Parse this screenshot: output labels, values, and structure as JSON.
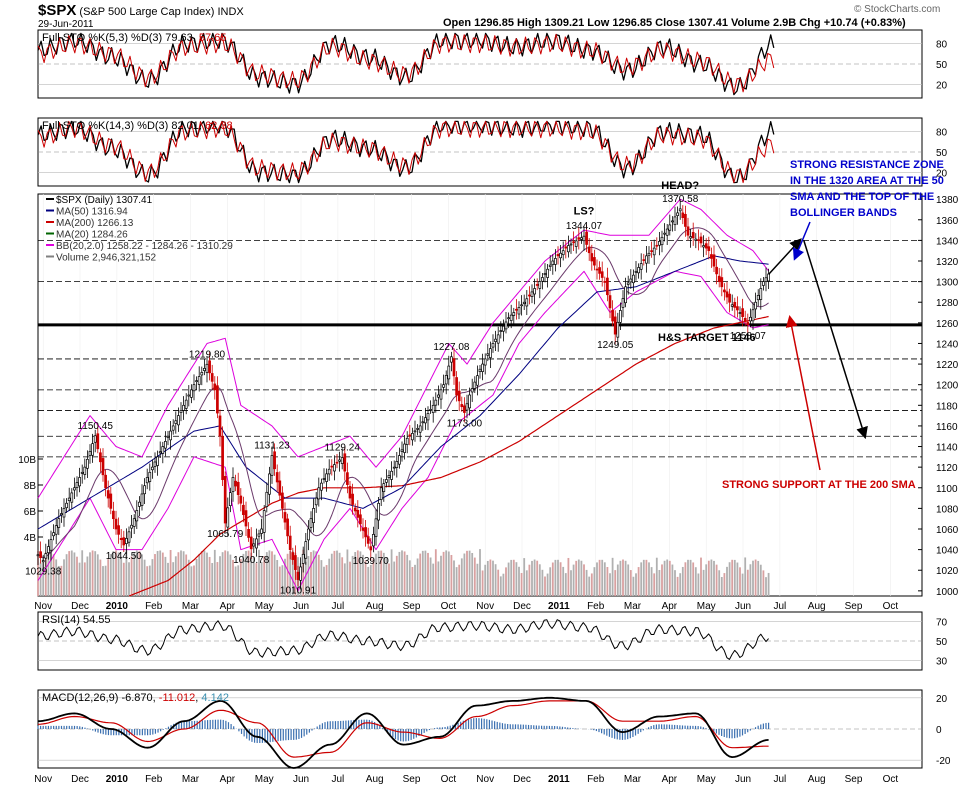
{
  "header": {
    "symbol": "$SPX",
    "name": "(S&P 500 Large Cap Index)",
    "exchange": "INDX",
    "date": "29-Jun-2011",
    "quote": "Open 1296.85  High 1309.21  Low 1296.85  Close 1307.41  Volume 2.9B  Chg +10.74 (+0.83%)",
    "watermark": "© StockCharts.com"
  },
  "colors": {
    "up": "#000000",
    "down": "#cc0000",
    "ma50": "#000080",
    "ma200": "#cc0000",
    "ma20": "#006400",
    "bb": "#dd00dd",
    "volume": "#b0b0b0",
    "annotation_blue": "#0000cc",
    "annotation_red": "#cc0000"
  },
  "chart_data": [
    {
      "type": "line",
      "title": "Full STO %K(5,3) %D(3)",
      "label_prefix": "Full STO %K(5,3) %D(3) ",
      "k_value": "79.63",
      "d_value": "57.65",
      "ylim": [
        0,
        100
      ],
      "y_ticks": [
        "80",
        "50",
        "20"
      ],
      "x": [
        "Nov",
        "Dec",
        "2010",
        "Feb",
        "Mar",
        "Apr",
        "May",
        "Jun",
        "Jul",
        "Aug",
        "Sep",
        "Oct",
        "Nov",
        "Dec",
        "2011",
        "Feb",
        "Mar",
        "Apr",
        "May",
        "Jun",
        "Jul"
      ],
      "series": [
        {
          "name": "%K",
          "values": [
            70,
            85,
            60,
            25,
            80,
            85,
            30,
            20,
            80,
            60,
            30,
            85,
            85,
            75,
            85,
            70,
            40,
            75,
            50,
            15,
            80
          ]
        },
        {
          "name": "%D",
          "values": [
            65,
            80,
            65,
            30,
            75,
            80,
            35,
            25,
            75,
            55,
            35,
            80,
            80,
            75,
            80,
            70,
            45,
            70,
            55,
            20,
            58
          ]
        }
      ]
    },
    {
      "type": "line",
      "title": "Full STO %K(14,3) %D(3)",
      "label_prefix": "Full STO %K(14,3) %D(3) ",
      "k_value": "82.01",
      "d_value": "62.38",
      "ylim": [
        0,
        100
      ],
      "y_ticks": [
        "80",
        "50",
        "20"
      ],
      "x": [
        "Nov",
        "Dec",
        "2010",
        "Feb",
        "Mar",
        "Apr",
        "May",
        "Jun",
        "Jul",
        "Aug",
        "Sep",
        "Oct",
        "Nov",
        "Dec",
        "2011",
        "Feb",
        "Mar",
        "Apr",
        "May",
        "Jun",
        "Jul"
      ],
      "series": [
        {
          "name": "%K",
          "values": [
            75,
            85,
            55,
            15,
            85,
            90,
            20,
            15,
            70,
            55,
            25,
            90,
            90,
            85,
            90,
            85,
            25,
            80,
            75,
            10,
            82
          ]
        },
        {
          "name": "%D",
          "values": [
            70,
            85,
            60,
            20,
            80,
            85,
            25,
            20,
            65,
            55,
            30,
            85,
            85,
            85,
            85,
            80,
            30,
            75,
            70,
            15,
            62
          ]
        }
      ]
    },
    {
      "type": "line",
      "title": "$SPX (Daily)",
      "ylim": [
        995,
        1385
      ],
      "y_ticks": [
        "1380",
        "1360",
        "1340",
        "1320",
        "1300",
        "1280",
        "1260",
        "1240",
        "1220",
        "1200",
        "1180",
        "1160",
        "1140",
        "1120",
        "1100",
        "1080",
        "1060",
        "1040",
        "1020",
        "1000"
      ],
      "x_labels": [
        "Nov",
        "Dec",
        "2010",
        "Feb",
        "Mar",
        "Apr",
        "May",
        "Jun",
        "Jul",
        "Aug",
        "Sep",
        "Oct",
        "Nov",
        "Dec",
        "2011",
        "Feb",
        "Mar",
        "Apr",
        "May",
        "Jun",
        "Jul",
        "Aug",
        "Sep",
        "Oct"
      ],
      "legend": [
        {
          "label": "$SPX (Daily) 1307.41",
          "color": "#000000"
        },
        {
          "label": "MA(50) 1316.94",
          "color": "#000080"
        },
        {
          "label": "MA(200) 1266.13",
          "color": "#cc0000"
        },
        {
          "label": "MA(20) 1284.26",
          "color": "#006400"
        },
        {
          "label": "BB(20,2.0) 1258.22 - 1284.26 - 1310.29",
          "color": "#dd00dd"
        },
        {
          "label": "Volume 2,946,321,152",
          "color": "#808080"
        }
      ],
      "volume_ticks": [
        "10B",
        "8B",
        "6B",
        "4B"
      ],
      "price_path": [
        [
          0,
          1035
        ],
        [
          2,
          1029.38
        ],
        [
          8,
          1070
        ],
        [
          14,
          1100
        ],
        [
          18,
          1120
        ],
        [
          22,
          1150.45
        ],
        [
          26,
          1100
        ],
        [
          30,
          1060
        ],
        [
          33,
          1044.5
        ],
        [
          37,
          1070
        ],
        [
          42,
          1110
        ],
        [
          48,
          1140
        ],
        [
          54,
          1170
        ],
        [
          60,
          1200
        ],
        [
          65,
          1219.8
        ],
        [
          68,
          1195
        ],
        [
          70,
          1150
        ],
        [
          72,
          1065.79
        ],
        [
          75,
          1110
        ],
        [
          78,
          1085
        ],
        [
          82,
          1040.78
        ],
        [
          86,
          1060
        ],
        [
          90,
          1131.23
        ],
        [
          94,
          1080
        ],
        [
          97,
          1040
        ],
        [
          100,
          1010.91
        ],
        [
          104,
          1060
        ],
        [
          108,
          1100
        ],
        [
          112,
          1118
        ],
        [
          117,
          1129.24
        ],
        [
          120,
          1090
        ],
        [
          124,
          1065
        ],
        [
          128,
          1039.7
        ],
        [
          132,
          1100
        ],
        [
          137,
          1120
        ],
        [
          142,
          1148
        ],
        [
          147,
          1160
        ],
        [
          152,
          1180
        ],
        [
          156,
          1200
        ],
        [
          159,
          1227.08
        ],
        [
          161,
          1190
        ],
        [
          164,
          1173
        ],
        [
          166,
          1190
        ],
        [
          170,
          1215
        ],
        [
          175,
          1240
        ],
        [
          181,
          1265
        ],
        [
          187,
          1280
        ],
        [
          193,
          1300
        ],
        [
          198,
          1320
        ],
        [
          204,
          1335
        ],
        [
          210,
          1344.07
        ],
        [
          213,
          1320
        ],
        [
          218,
          1300
        ],
        [
          222,
          1249.05
        ],
        [
          226,
          1295
        ],
        [
          230,
          1310
        ],
        [
          234,
          1325
        ],
        [
          238,
          1335
        ],
        [
          243,
          1355
        ],
        [
          247,
          1370.58
        ],
        [
          250,
          1345
        ],
        [
          254,
          1340
        ],
        [
          258,
          1330
        ],
        [
          262,
          1300
        ],
        [
          266,
          1280
        ],
        [
          270,
          1270
        ],
        [
          273,
          1258.07
        ],
        [
          276,
          1280
        ],
        [
          279,
          1300
        ],
        [
          281,
          1307.41
        ]
      ],
      "ma50": [
        [
          0,
          1060
        ],
        [
          20,
          1090
        ],
        [
          40,
          1120
        ],
        [
          60,
          1155
        ],
        [
          70,
          1160
        ],
        [
          80,
          1120
        ],
        [
          95,
          1090
        ],
        [
          110,
          1090
        ],
        [
          125,
          1080
        ],
        [
          140,
          1100
        ],
        [
          155,
          1140
        ],
        [
          170,
          1170
        ],
        [
          185,
          1210
        ],
        [
          200,
          1255
        ],
        [
          215,
          1290
        ],
        [
          230,
          1295
        ],
        [
          245,
          1310
        ],
        [
          260,
          1325
        ],
        [
          270,
          1320
        ],
        [
          281,
          1316.94
        ]
      ],
      "ma200": [
        [
          35,
          995
        ],
        [
          50,
          1010
        ],
        [
          60,
          1030
        ],
        [
          70,
          1055
        ],
        [
          80,
          1070
        ],
        [
          90,
          1085
        ],
        [
          100,
          1095
        ],
        [
          110,
          1100
        ],
        [
          125,
          1100
        ],
        [
          140,
          1102
        ],
        [
          155,
          1110
        ],
        [
          170,
          1125
        ],
        [
          185,
          1145
        ],
        [
          200,
          1170
        ],
        [
          215,
          1195
        ],
        [
          230,
          1220
        ],
        [
          245,
          1240
        ],
        [
          260,
          1255
        ],
        [
          281,
          1266.13
        ]
      ],
      "bb_upper": [
        [
          0,
          1090
        ],
        [
          20,
          1170
        ],
        [
          30,
          1140
        ],
        [
          40,
          1130
        ],
        [
          50,
          1180
        ],
        [
          65,
          1240
        ],
        [
          72,
          1245
        ],
        [
          78,
          1180
        ],
        [
          90,
          1160
        ],
        [
          100,
          1130
        ],
        [
          110,
          1140
        ],
        [
          120,
          1150
        ],
        [
          130,
          1120
        ],
        [
          140,
          1150
        ],
        [
          150,
          1200
        ],
        [
          158,
          1240
        ],
        [
          165,
          1220
        ],
        [
          175,
          1260
        ],
        [
          185,
          1290
        ],
        [
          195,
          1320
        ],
        [
          210,
          1350
        ],
        [
          220,
          1345
        ],
        [
          235,
          1345
        ],
        [
          247,
          1380
        ],
        [
          255,
          1370
        ],
        [
          265,
          1345
        ],
        [
          275,
          1330
        ],
        [
          281,
          1310.29
        ]
      ],
      "bb_lower": [
        [
          0,
          1010
        ],
        [
          20,
          1090
        ],
        [
          30,
          1040
        ],
        [
          40,
          1040
        ],
        [
          50,
          1080
        ],
        [
          60,
          1130
        ],
        [
          72,
          1120
        ],
        [
          78,
          1040
        ],
        [
          90,
          1050
        ],
        [
          100,
          1000
        ],
        [
          110,
          1050
        ],
        [
          120,
          1080
        ],
        [
          130,
          1040
        ],
        [
          140,
          1080
        ],
        [
          150,
          1110
        ],
        [
          160,
          1160
        ],
        [
          165,
          1170
        ],
        [
          175,
          1190
        ],
        [
          185,
          1240
        ],
        [
          195,
          1270
        ],
        [
          210,
          1310
        ],
        [
          220,
          1270
        ],
        [
          230,
          1290
        ],
        [
          245,
          1310
        ],
        [
          255,
          1305
        ],
        [
          265,
          1270
        ],
        [
          275,
          1255
        ],
        [
          281,
          1258.22
        ]
      ],
      "price_labels": [
        {
          "text": "1029.38",
          "t": 2,
          "price": 1029.38,
          "pos": "below"
        },
        {
          "text": "1150.45",
          "t": 22,
          "price": 1150.45,
          "pos": "above"
        },
        {
          "text": "1044.50",
          "t": 33,
          "price": 1044.5,
          "pos": "below"
        },
        {
          "text": "1219.80",
          "t": 65,
          "price": 1219.8,
          "pos": "above"
        },
        {
          "text": "1065.79",
          "t": 72,
          "price": 1065.79,
          "pos": "below"
        },
        {
          "text": "1040.78",
          "t": 82,
          "price": 1040.78,
          "pos": "below"
        },
        {
          "text": "1131.23",
          "t": 90,
          "price": 1131.23,
          "pos": "above"
        },
        {
          "text": "1010.91",
          "t": 100,
          "price": 1010.91,
          "pos": "below"
        },
        {
          "text": "1129.24",
          "t": 117,
          "price": 1129.24,
          "pos": "above"
        },
        {
          "text": "1039.70",
          "t": 128,
          "price": 1039.7,
          "pos": "below"
        },
        {
          "text": "1227.08",
          "t": 159,
          "price": 1227.08,
          "pos": "above"
        },
        {
          "text": "1173.00",
          "t": 164,
          "price": 1173,
          "pos": "below"
        },
        {
          "text": "1344.07",
          "t": 210,
          "price": 1344.07,
          "pos": "above"
        },
        {
          "text": "1249.05",
          "t": 222,
          "price": 1249.05,
          "pos": "below"
        },
        {
          "text": "1370.58",
          "t": 247,
          "price": 1370.58,
          "pos": "above"
        },
        {
          "text": "1258.07",
          "t": 273,
          "price": 1258.07,
          "pos": "below"
        }
      ],
      "dashed_levels": [
        1340,
        1300,
        1225,
        1195,
        1175,
        1150,
        1130
      ],
      "neckline": 1258,
      "annotations": {
        "ls": "LS?",
        "head": "HEAD?",
        "target": "H&S TARGET 1146",
        "resistance": "STRONG RESISTANCE ZONE IN THE 1320 AREA AT THE 50 SMA AND THE TOP OF THE BOLLINGER BANDS",
        "support": "STRONG SUPPORT AT THE 200 SMA"
      },
      "projection": [
        [
          281,
          1307
        ],
        [
          293,
          1340
        ],
        [
          318,
          1150
        ]
      ]
    },
    {
      "type": "line",
      "title": "RSI(14)",
      "label_prefix": "RSI(14) ",
      "value": "54.55",
      "ylim": [
        20,
        80
      ],
      "y_ticks": [
        "70",
        "50",
        "30"
      ],
      "values": [
        55,
        60,
        52,
        40,
        62,
        66,
        38,
        40,
        56,
        50,
        45,
        64,
        66,
        62,
        68,
        64,
        45,
        62,
        60,
        35,
        54.55
      ]
    },
    {
      "type": "line",
      "title": "MACD(12,26,9)",
      "label_prefix": "MACD(12,26,9) ",
      "macd_value": "-6.870",
      "signal_value": "-11.012",
      "hist_value": "4.142",
      "ylim": [
        -25,
        25
      ],
      "y_ticks": [
        "20",
        "0",
        "-20"
      ],
      "macd": [
        5,
        10,
        0,
        -12,
        5,
        18,
        -5,
        -25,
        -10,
        10,
        -10,
        -5,
        15,
        18,
        20,
        18,
        -2,
        8,
        10,
        -18,
        -7
      ],
      "signal": [
        3,
        8,
        4,
        -8,
        0,
        12,
        4,
        -18,
        -15,
        4,
        -2,
        -6,
        8,
        15,
        18,
        18,
        5,
        5,
        8,
        -12,
        -11
      ]
    }
  ]
}
